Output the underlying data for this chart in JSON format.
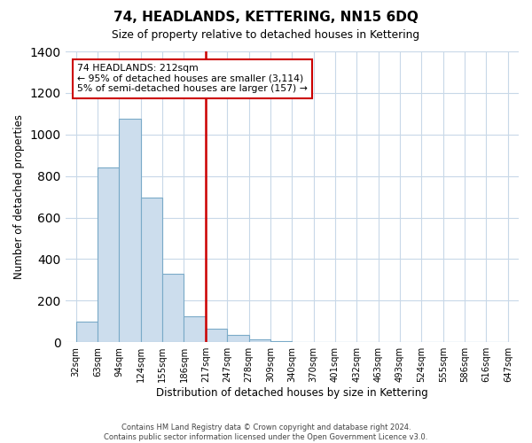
{
  "title": "74, HEADLANDS, KETTERING, NN15 6DQ",
  "subtitle": "Size of property relative to detached houses in Kettering",
  "xlabel": "Distribution of detached houses by size in Kettering",
  "ylabel": "Number of detached properties",
  "bar_color": "#ccdded",
  "bar_edge_color": "#7aaac8",
  "bin_labels": [
    "32sqm",
    "63sqm",
    "94sqm",
    "124sqm",
    "155sqm",
    "186sqm",
    "217sqm",
    "247sqm",
    "278sqm",
    "309sqm",
    "340sqm",
    "370sqm",
    "401sqm",
    "432sqm",
    "463sqm",
    "493sqm",
    "524sqm",
    "555sqm",
    "586sqm",
    "616sqm",
    "647sqm"
  ],
  "bar_values": [
    100,
    840,
    1075,
    695,
    330,
    125,
    65,
    35,
    15,
    5,
    2,
    0,
    0,
    0,
    0,
    0,
    0,
    0,
    0,
    0
  ],
  "vline_label_index": 6,
  "vline_color": "#cc0000",
  "annotation_line1": "74 HEADLANDS: 212sqm",
  "annotation_line2": "← 95% of detached houses are smaller (3,114)",
  "annotation_line3": "5% of semi-detached houses are larger (157) →",
  "annotation_box_color": "white",
  "annotation_box_edge": "#cc0000",
  "ylim": [
    0,
    1400
  ],
  "yticks": [
    0,
    200,
    400,
    600,
    800,
    1000,
    1200,
    1400
  ],
  "footer_line1": "Contains HM Land Registry data © Crown copyright and database right 2024.",
  "footer_line2": "Contains public sector information licensed under the Open Government Licence v3.0.",
  "background_color": "#ffffff",
  "grid_color": "#c8d8e8"
}
